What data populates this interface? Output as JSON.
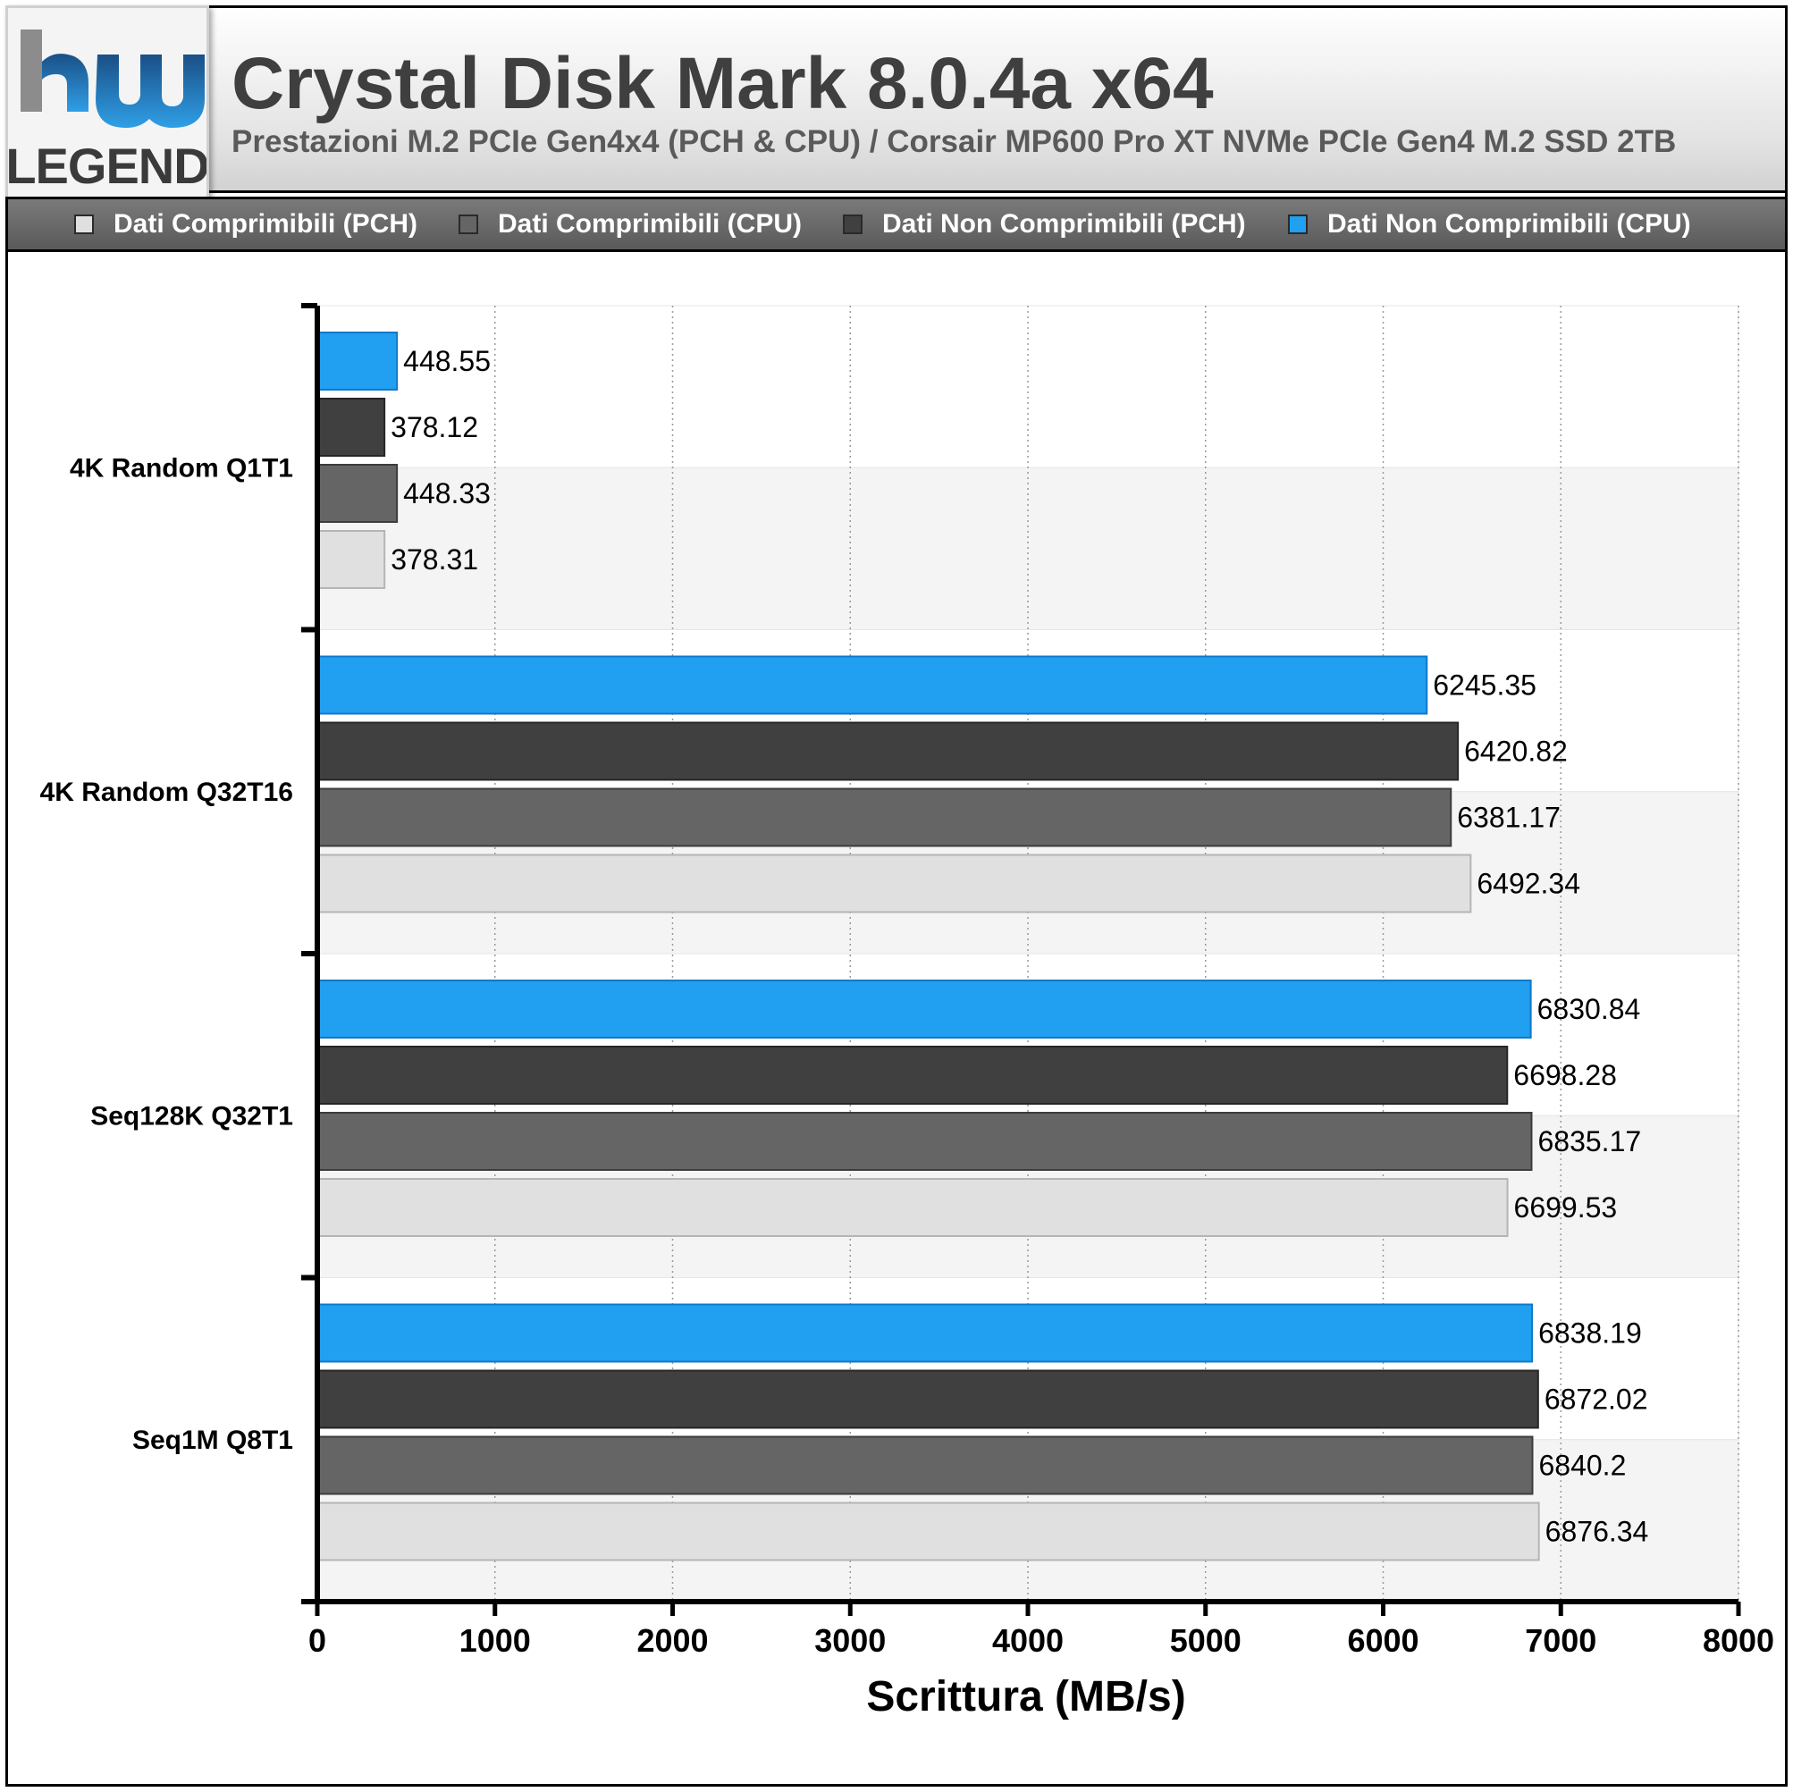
{
  "header": {
    "title": "Crystal Disk Mark 8.0.4a x64",
    "subtitle": "Prestazioni M.2 PCIe Gen4x4 (PCH & CPU) / Corsair MP600 Pro XT NVMe PCIe Gen4 M.2 SSD 2TB",
    "logo_text": "LEGEND"
  },
  "colors": {
    "comp_pch": "#e0e0e0",
    "comp_cpu": "#656565",
    "noncomp_pch": "#404040",
    "noncomp_cpu": "#219ff0"
  },
  "chart_data": {
    "type": "bar",
    "orientation": "horizontal",
    "categories": [
      "4K Random Q1T1",
      "4K Random Q32T16",
      "Seq128K Q32T1",
      "Seq1M Q8T1"
    ],
    "series": [
      {
        "name": "Dati Comprimibili (PCH)",
        "color": "#e0e0e0",
        "values": [
          378.31,
          6492.34,
          6699.53,
          6876.34
        ]
      },
      {
        "name": "Dati Comprimibili (CPU)",
        "color": "#656565",
        "values": [
          448.33,
          6381.17,
          6835.17,
          6840.2
        ]
      },
      {
        "name": "Dati Non Comprimibili (PCH)",
        "color": "#404040",
        "values": [
          378.12,
          6420.82,
          6698.28,
          6872.02
        ]
      },
      {
        "name": "Dati Non Comprimibili (CPU)",
        "color": "#219ff0",
        "values": [
          448.55,
          6245.35,
          6830.84,
          6838.19
        ]
      }
    ],
    "xlabel": "Scrittura (MB/s)",
    "ylabel": "",
    "xlim": [
      0,
      8000
    ],
    "xticks": [
      "0",
      "1000",
      "2000",
      "3000",
      "4000",
      "5000",
      "6000",
      "7000",
      "8000"
    ],
    "grid": "vertical dotted",
    "legend_position": "top"
  }
}
